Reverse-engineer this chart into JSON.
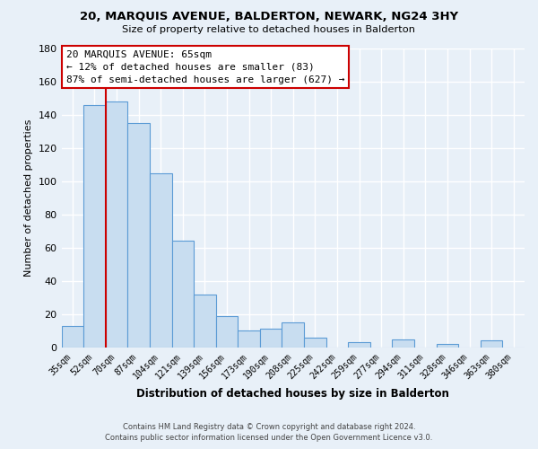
{
  "title1": "20, MARQUIS AVENUE, BALDERTON, NEWARK, NG24 3HY",
  "title2": "Size of property relative to detached houses in Balderton",
  "xlabel": "Distribution of detached houses by size in Balderton",
  "ylabel": "Number of detached properties",
  "bar_labels": [
    "35sqm",
    "52sqm",
    "70sqm",
    "87sqm",
    "104sqm",
    "121sqm",
    "139sqm",
    "156sqm",
    "173sqm",
    "190sqm",
    "208sqm",
    "225sqm",
    "242sqm",
    "259sqm",
    "277sqm",
    "294sqm",
    "311sqm",
    "328sqm",
    "346sqm",
    "363sqm",
    "380sqm"
  ],
  "bar_heights": [
    13,
    146,
    148,
    135,
    105,
    64,
    32,
    19,
    10,
    11,
    15,
    6,
    0,
    3,
    0,
    5,
    0,
    2,
    0,
    4,
    0
  ],
  "bar_color": "#c8ddf0",
  "bar_edge_color": "#5b9bd5",
  "vline_color": "#cc0000",
  "ylim": [
    0,
    180
  ],
  "yticks": [
    0,
    20,
    40,
    60,
    80,
    100,
    120,
    140,
    160,
    180
  ],
  "annotation_title": "20 MARQUIS AVENUE: 65sqm",
  "annotation_line1": "← 12% of detached houses are smaller (83)",
  "annotation_line2": "87% of semi-detached houses are larger (627) →",
  "annotation_box_color": "#ffffff",
  "annotation_box_edge": "#cc0000",
  "footer1": "Contains HM Land Registry data © Crown copyright and database right 2024.",
  "footer2": "Contains public sector information licensed under the Open Government Licence v3.0.",
  "bg_color": "#e8f0f8",
  "grid_color": "#ffffff"
}
